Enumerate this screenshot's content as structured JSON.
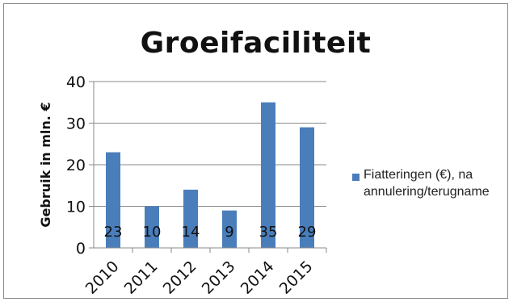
{
  "chart_data": {
    "type": "bar",
    "title": "Groeifaciliteit",
    "ylabel": "Gebruik in mln. €",
    "xlabel": "",
    "categories": [
      "2010",
      "2011",
      "2012",
      "2013",
      "2014",
      "2015"
    ],
    "series": [
      {
        "name": "Fiatteringen (€), na annulering/terugname",
        "values": [
          23,
          10,
          14,
          9,
          35,
          29
        ],
        "color": "#4a7ebb"
      }
    ],
    "data_labels": [
      "23",
      "10",
      "14",
      "9",
      "35",
      "29"
    ],
    "ylim": [
      0,
      40
    ],
    "yticks": [
      0,
      10,
      20,
      30,
      40
    ],
    "grid": true,
    "legend_position": "right"
  }
}
